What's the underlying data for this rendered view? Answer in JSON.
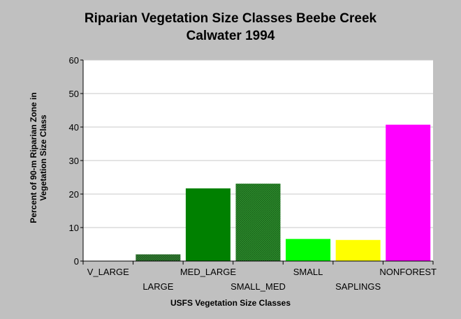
{
  "chart_data": {
    "type": "bar",
    "title_line1": "Riparian Vegetation Size Classes Beebe Creek",
    "title_line2": "Calwater 1994",
    "xlabel": "USFS Vegetation Size Classes",
    "ylabel": "Percent of 90-m Riparian Zone in Vegetation Size Class",
    "categories": [
      "V_LARGE",
      "LARGE",
      "MED_LARGE",
      "SMALL_MED",
      "SMALL",
      "SAPLINGS",
      "NONFOREST"
    ],
    "values": [
      0,
      2,
      21.7,
      23.1,
      6.6,
      6.3,
      40.7
    ],
    "colors": [
      "#1a4d1a",
      "#1f5a1f",
      "#008000",
      "#2e8b2e",
      "#00ff00",
      "#ffff00",
      "#ff00ff"
    ],
    "ylim": [
      0,
      60
    ],
    "yticks": [
      0,
      10,
      20,
      30,
      40,
      50,
      60
    ],
    "grid": true
  }
}
